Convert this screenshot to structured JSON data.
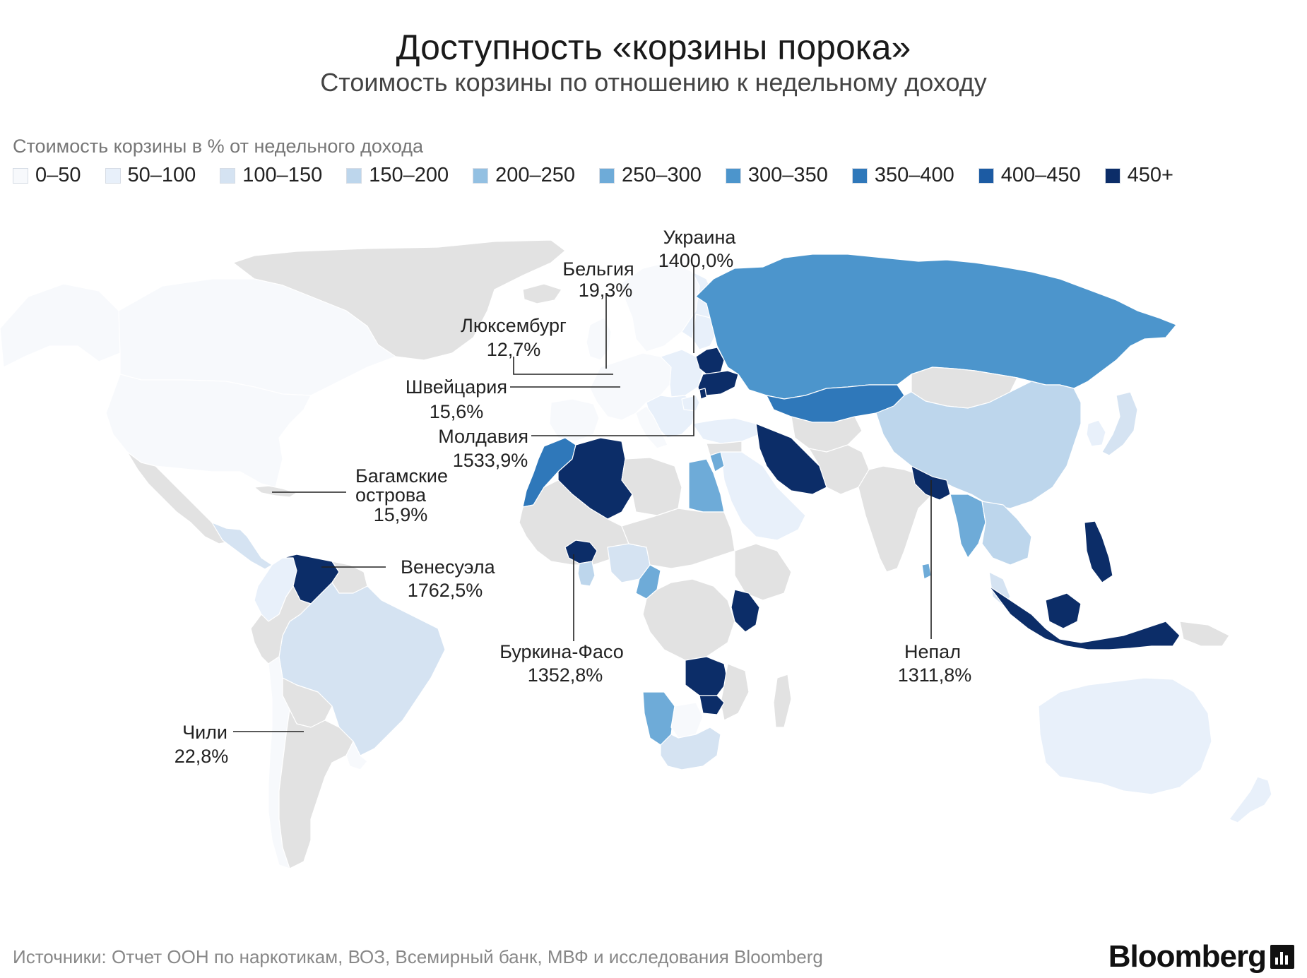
{
  "header": {
    "title": "Доступность «корзины порока»",
    "subtitle": "Стоимость корзины по отношению к недельному доходу"
  },
  "legend": {
    "title": "Стоимость корзины в % от недельного дохода",
    "items": [
      {
        "label": "0–50",
        "color": "#f7f9fc"
      },
      {
        "label": "50–100",
        "color": "#e8f0fa"
      },
      {
        "label": "100–150",
        "color": "#d5e3f2"
      },
      {
        "label": "150–200",
        "color": "#bdd6ec"
      },
      {
        "label": "200–250",
        "color": "#93c0e2"
      },
      {
        "label": "250–300",
        "color": "#6eabd8"
      },
      {
        "label": "300–350",
        "color": "#4c95cc"
      },
      {
        "label": "350–400",
        "color": "#2f78ba"
      },
      {
        "label": "400–450",
        "color": "#1c5ba3"
      },
      {
        "label": "450+",
        "color": "#0c2d68"
      }
    ]
  },
  "map_colors": {
    "no_data": "#e2e2e2",
    "border": "#ffffff",
    "leader_line": "#222222"
  },
  "callouts": {
    "ukraine": {
      "name": "Украина",
      "value": "1400,0%"
    },
    "belgium": {
      "name": "Бельгия",
      "value": "19,3%"
    },
    "luxembourg": {
      "name": "Люксембург",
      "value": "12,7%"
    },
    "switzerland": {
      "name": "Швейцария",
      "value": "15,6%"
    },
    "moldova": {
      "name": "Молдавия",
      "value": "1533,9%"
    },
    "bahamas": {
      "name_line1": "Багамские",
      "name_line2": "острова",
      "value": "15,9%"
    },
    "venezuela": {
      "name": "Венесуэла",
      "value": "1762,5%"
    },
    "burkina": {
      "name": "Буркина-Фасо",
      "value": "1352,8%"
    },
    "nepal": {
      "name": "Непал",
      "value": "1311,8%"
    },
    "chile": {
      "name": "Чили",
      "value": "22,8%"
    }
  },
  "footer": {
    "source": "Источники: Отчет ООН по наркотикам, ВОЗ, Всемирный банк, МВФ и исследования Bloomberg",
    "brand": "Bloomberg"
  }
}
